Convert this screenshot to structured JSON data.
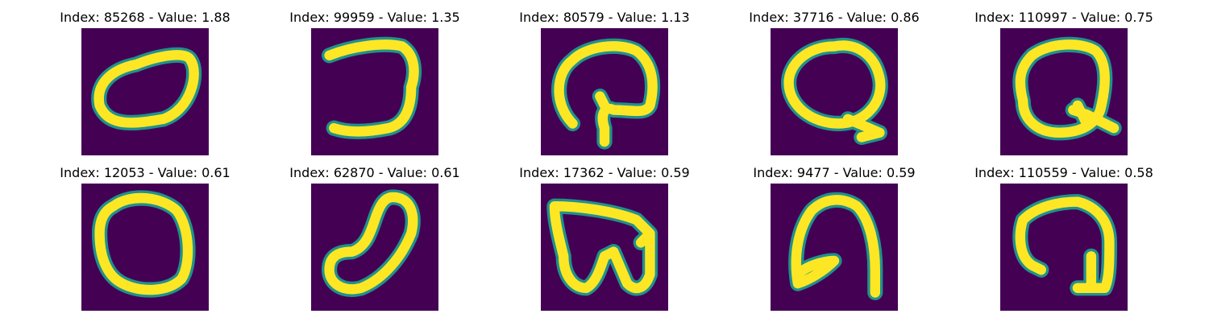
{
  "colors": {
    "background": "#440154",
    "mid": "#21918c",
    "foreground": "#fde725"
  },
  "panels": [
    {
      "index": "85268",
      "value": "1.88",
      "title": "Index: 85268 - Value: 1.88",
      "glyph": "slanted-oval"
    },
    {
      "index": "99959",
      "value": "1.35",
      "title": "Index: 99959 - Value: 1.35",
      "glyph": "reversed-c"
    },
    {
      "index": "80579",
      "value": "1.13",
      "title": "Index: 80579 - Value: 1.13",
      "glyph": "hook-with-square"
    },
    {
      "index": "37716",
      "value": "0.86",
      "title": "Index: 37716 - Value: 0.86",
      "glyph": "letter-q"
    },
    {
      "index": "110997",
      "value": "0.75",
      "title": "Index: 110997 - Value: 0.75",
      "glyph": "letter-q-star"
    },
    {
      "index": "12053",
      "value": "0.61",
      "title": "Index: 12053 - Value: 0.61",
      "glyph": "upright-oval"
    },
    {
      "index": "62870",
      "value": "0.61",
      "title": "Index: 62870 - Value: 0.61",
      "glyph": "diagonal-oval"
    },
    {
      "index": "17362",
      "value": "0.59",
      "title": "Index: 17362 - Value: 0.59",
      "glyph": "w-shape"
    },
    {
      "index": "9477",
      "value": "0.59",
      "title": "Index: 9477 - Value: 0.59",
      "glyph": "arch-with-hook"
    },
    {
      "index": "110559",
      "value": "0.58",
      "title": "Index: 110559 - Value: 0.58",
      "glyph": "arch-with-stem"
    }
  ]
}
